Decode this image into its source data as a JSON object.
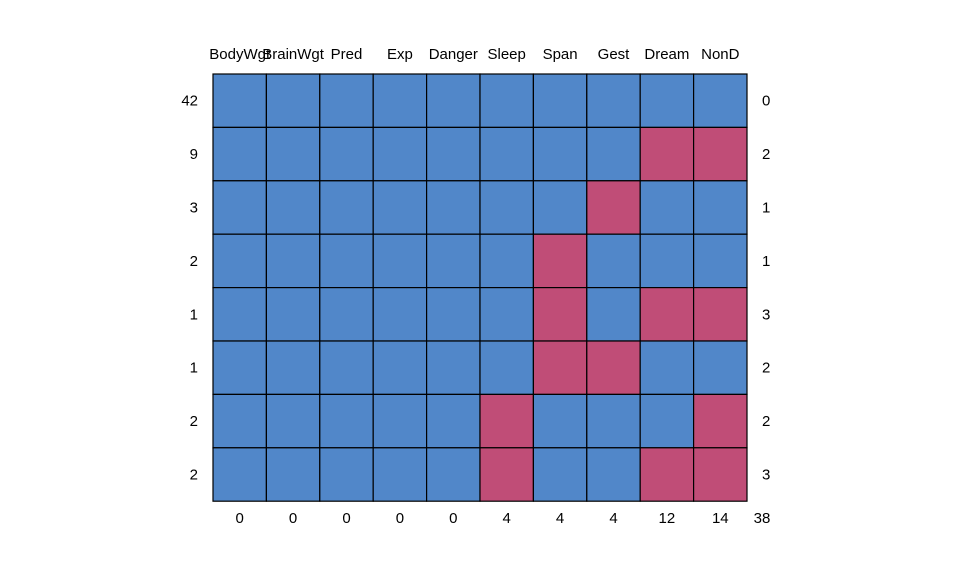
{
  "chart_data": {
    "type": "heatmap",
    "title": "",
    "columns": [
      "BodyWgt",
      "BrainWgt",
      "Pred",
      "Exp",
      "Danger",
      "Sleep",
      "Span",
      "Gest",
      "Dream",
      "NonD"
    ],
    "row_counts": [
      42,
      9,
      3,
      2,
      1,
      1,
      2,
      2
    ],
    "row_missing_totals": [
      0,
      2,
      1,
      1,
      3,
      2,
      2,
      3
    ],
    "column_missing_totals": [
      0,
      0,
      0,
      0,
      0,
      4,
      4,
      4,
      12,
      14
    ],
    "total_missing": 38,
    "pattern": [
      [
        1,
        1,
        1,
        1,
        1,
        1,
        1,
        1,
        1,
        1
      ],
      [
        1,
        1,
        1,
        1,
        1,
        1,
        1,
        1,
        0,
        0
      ],
      [
        1,
        1,
        1,
        1,
        1,
        1,
        1,
        0,
        1,
        1
      ],
      [
        1,
        1,
        1,
        1,
        1,
        1,
        0,
        1,
        1,
        1
      ],
      [
        1,
        1,
        1,
        1,
        1,
        1,
        0,
        1,
        0,
        0
      ],
      [
        1,
        1,
        1,
        1,
        1,
        1,
        0,
        0,
        1,
        1
      ],
      [
        1,
        1,
        1,
        1,
        1,
        0,
        1,
        1,
        1,
        0
      ],
      [
        1,
        1,
        1,
        1,
        1,
        0,
        1,
        1,
        0,
        0
      ]
    ],
    "colors": {
      "observed": "#5187C9",
      "missing": "#C04D77",
      "border": "#000000"
    }
  }
}
